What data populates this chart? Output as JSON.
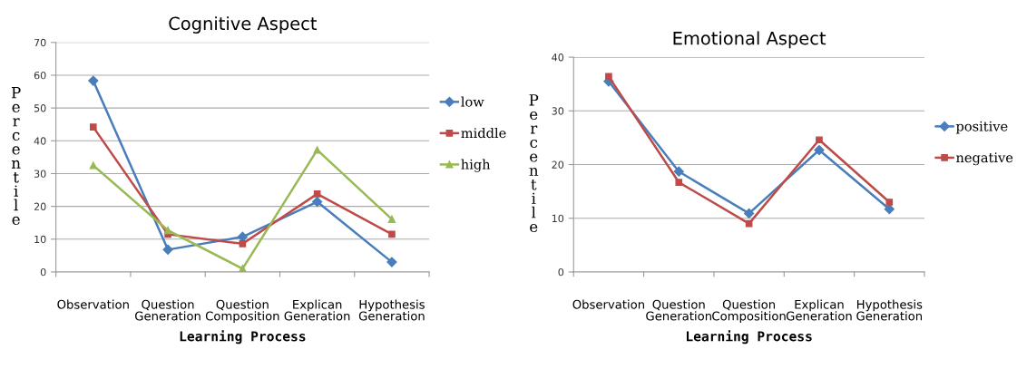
{
  "chart_data": [
    {
      "type": "line",
      "title": "Cognitive Aspect",
      "xlabel": "Learning Process",
      "ylabel": "Percentile",
      "categories": [
        "Observation",
        "Question Generation",
        "Question Composition",
        "Explican Generation",
        "Hypothesis Generation"
      ],
      "series": [
        {
          "name": "low",
          "color": "#4a7ebb",
          "marker": "diamond",
          "values": [
            58.3,
            6.8,
            10.7,
            21.4,
            3.0
          ]
        },
        {
          "name": "middle",
          "color": "#be4b48",
          "marker": "square",
          "values": [
            44.2,
            11.5,
            8.6,
            23.8,
            11.5
          ]
        },
        {
          "name": "high",
          "color": "#98b954",
          "marker": "triangle",
          "values": [
            32.5,
            12.7,
            1.0,
            37.2,
            16.1
          ]
        }
      ],
      "ylim": [
        0,
        70
      ],
      "yticks": [
        0,
        10,
        20,
        30,
        40,
        50,
        60,
        70
      ],
      "grid": "y",
      "legend": "right"
    },
    {
      "type": "line",
      "title": "Emotional Aspect",
      "xlabel": "Learning Process",
      "ylabel": "Percentile",
      "categories": [
        "Observation",
        "Question Generation",
        "Question Composition",
        "Explican Generation",
        "Hypothesis Generation"
      ],
      "series": [
        {
          "name": "positive",
          "color": "#4a7ebb",
          "marker": "diamond",
          "values": [
            35.5,
            18.7,
            10.9,
            22.7,
            11.7
          ]
        },
        {
          "name": "negative",
          "color": "#be4b48",
          "marker": "square",
          "values": [
            36.4,
            16.7,
            9.0,
            24.6,
            13.0
          ]
        }
      ],
      "ylim": [
        0,
        40
      ],
      "yticks": [
        0,
        10,
        20,
        30,
        40
      ],
      "grid": "y",
      "legend": "right"
    }
  ]
}
